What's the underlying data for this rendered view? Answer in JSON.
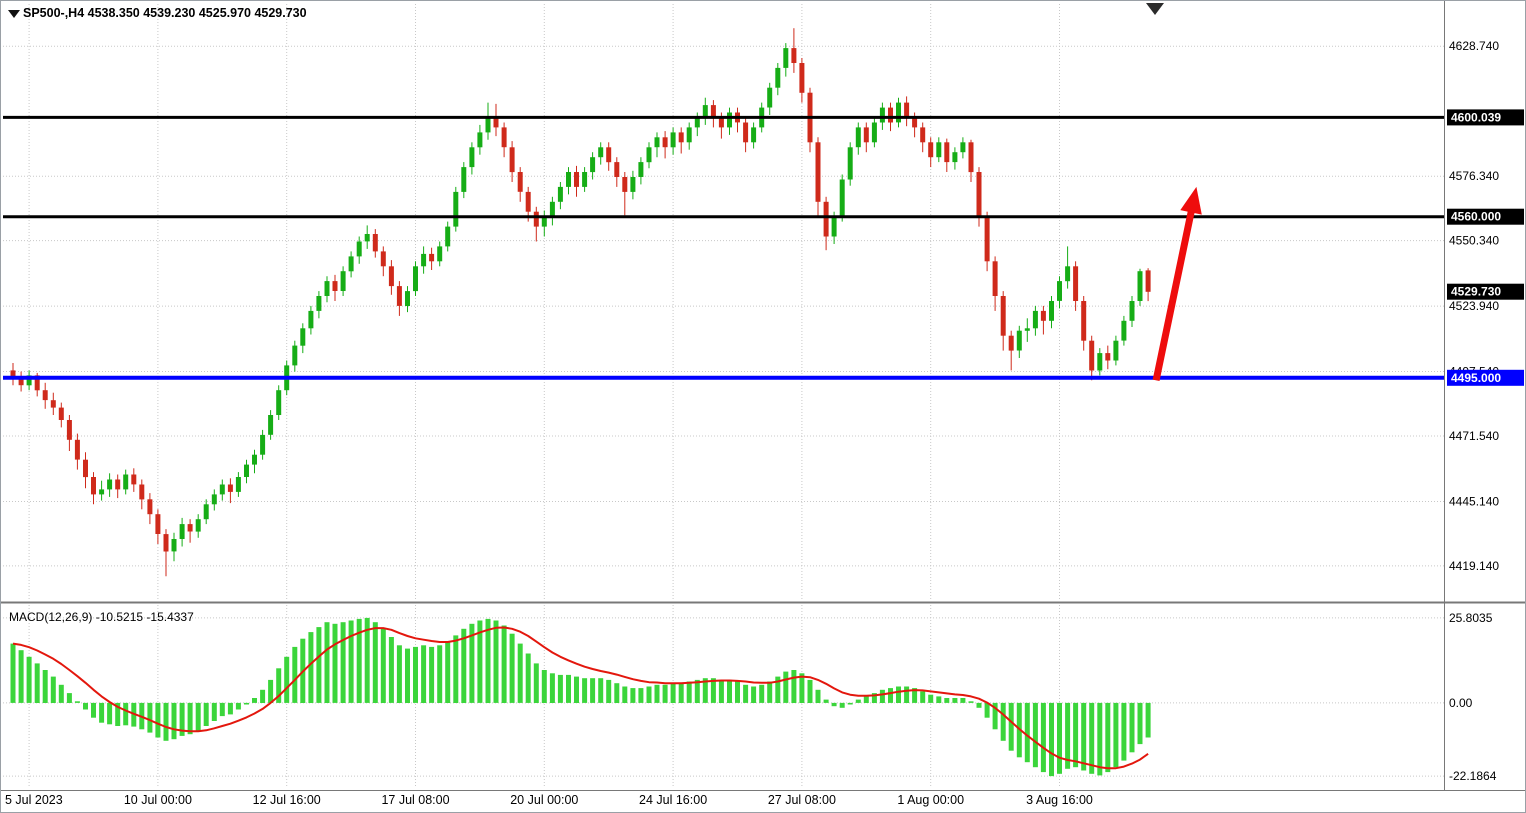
{
  "window": {
    "symbol_header": "SP500-,H4 4538.350 4539.230 4525.970 4529.730",
    "macd_header": "MACD(12,26,9) -10.5215 -15.4337"
  },
  "colors": {
    "bull": "#16ad16",
    "bear": "#cf2a1b",
    "macd_hist": "#3bd53b",
    "macd_signal": "#e3170d",
    "arrow": "#ee0d0d",
    "grid": "#c8c8c8",
    "hline_black": "#000000",
    "hline_blue": "#0000ff",
    "label_text": "#ffffff",
    "axis_text": "#000000",
    "divider": "#787878"
  },
  "chart_data": {
    "type": "candlestick",
    "title": "SP500-,H4",
    "symbol": "SP500-",
    "timeframe": "H4",
    "last_ohlc": {
      "open": 4538.35,
      "high": 4539.23,
      "low": 4525.97,
      "close": 4529.73
    },
    "price_axis": {
      "range": [
        4405.0,
        4636.5
      ],
      "ticks": [
        {
          "value": 4628.74,
          "label": "4628.740"
        },
        {
          "value": 4576.34,
          "label": "4576.340"
        },
        {
          "value": 4550.34,
          "label": "4550.340"
        },
        {
          "value": 4523.94,
          "label": "4523.940"
        },
        {
          "value": 4497.54,
          "label": "4497.540"
        },
        {
          "value": 4471.54,
          "label": "4471.540"
        },
        {
          "value": 4445.14,
          "label": "4445.140"
        },
        {
          "value": 4419.14,
          "label": "4419.140"
        }
      ]
    },
    "time_axis": [
      {
        "bar": 2,
        "label": "5 Jul 2023"
      },
      {
        "bar": 18,
        "label": "10 Jul 00:00"
      },
      {
        "bar": 34,
        "label": "12 Jul 16:00"
      },
      {
        "bar": 50,
        "label": "17 Jul 08:00"
      },
      {
        "bar": 66,
        "label": "20 Jul 00:00"
      },
      {
        "bar": 82,
        "label": "24 Jul 16:00"
      },
      {
        "bar": 98,
        "label": "27 Jul 08:00"
      },
      {
        "bar": 114,
        "label": "1 Aug 00:00"
      },
      {
        "bar": 130,
        "label": "3 Aug 16:00"
      }
    ],
    "horizontal_lines": [
      {
        "price": 4600.039,
        "label": "4600.039",
        "color": "#000000",
        "width": 3
      },
      {
        "price": 4560.0,
        "label": "4560.000",
        "color": "#000000",
        "width": 3
      },
      {
        "price": 4495.0,
        "label": "4495.000",
        "color": "#0000ff",
        "width": 4
      }
    ],
    "current_price": {
      "value": 4529.73,
      "label": "4529.730"
    },
    "candles": [
      [
        4498.0,
        4501.0,
        4492.0,
        4495.0
      ],
      [
        4495.0,
        4497.5,
        4489.5,
        4492.0
      ],
      [
        4492.0,
        4498.0,
        4490.0,
        4496.0
      ],
      [
        4496.0,
        4497.0,
        4487.5,
        4490.0
      ],
      [
        4490.0,
        4493.0,
        4482.5,
        4486.0
      ],
      [
        4486.0,
        4489.0,
        4480.0,
        4483.0
      ],
      [
        4483.0,
        4485.0,
        4475.0,
        4478.0
      ],
      [
        4478.0,
        4480.0,
        4465.5,
        4470.0
      ],
      [
        4470.0,
        4472.5,
        4458.0,
        4462.0
      ],
      [
        4462.0,
        4465.0,
        4450.5,
        4455.0
      ],
      [
        4455.0,
        4457.0,
        4444.0,
        4448.0
      ],
      [
        4448.0,
        4453.5,
        4445.5,
        4450.0
      ],
      [
        4450.0,
        4456.5,
        4447.0,
        4454.0
      ],
      [
        4454.0,
        4456.0,
        4446.5,
        4450.0
      ],
      [
        4450.0,
        4458.0,
        4448.0,
        4456.0
      ],
      [
        4456.0,
        4458.5,
        4449.0,
        4452.0
      ],
      [
        4452.0,
        4454.0,
        4442.0,
        4446.0
      ],
      [
        4446.0,
        4448.5,
        4436.0,
        4440.0
      ],
      [
        4440.0,
        4442.0,
        4428.0,
        4432.0
      ],
      [
        4432.0,
        4434.0,
        4415.0,
        4425.0
      ],
      [
        4425.0,
        4432.5,
        4421.0,
        4430.0
      ],
      [
        4430.0,
        4438.5,
        4427.0,
        4436.0
      ],
      [
        4436.0,
        4438.0,
        4428.5,
        4433.0
      ],
      [
        4433.0,
        4440.0,
        4430.5,
        4438.0
      ],
      [
        4438.0,
        4446.0,
        4436.0,
        4444.0
      ],
      [
        4444.0,
        4450.0,
        4441.5,
        4448.0
      ],
      [
        4448.0,
        4454.0,
        4445.5,
        4452.0
      ],
      [
        4452.0,
        4454.5,
        4444.5,
        4449.0
      ],
      [
        4449.0,
        4457.0,
        4447.0,
        4455.0
      ],
      [
        4455.0,
        4462.0,
        4452.5,
        4460.0
      ],
      [
        4460.0,
        4466.0,
        4456.5,
        4464.0
      ],
      [
        4464.0,
        4474.0,
        4462.0,
        4472.0
      ],
      [
        4472.0,
        4482.0,
        4470.0,
        4480.0
      ],
      [
        4480.0,
        4492.0,
        4478.0,
        4490.0
      ],
      [
        4490.0,
        4502.0,
        4488.0,
        4500.0
      ],
      [
        4500.0,
        4510.0,
        4497.5,
        4508.0
      ],
      [
        4508.0,
        4517.0,
        4505.0,
        4515.0
      ],
      [
        4515.0,
        4524.0,
        4512.5,
        4522.0
      ],
      [
        4522.0,
        4530.0,
        4519.0,
        4528.0
      ],
      [
        4528.0,
        4536.0,
        4525.5,
        4534.0
      ],
      [
        4534.0,
        4536.5,
        4526.0,
        4530.0
      ],
      [
        4530.0,
        4540.0,
        4528.0,
        4538.0
      ],
      [
        4538.0,
        4546.0,
        4535.5,
        4544.0
      ],
      [
        4544.0,
        4552.0,
        4541.0,
        4550.0
      ],
      [
        4550.0,
        4556.5,
        4547.0,
        4553.0
      ],
      [
        4553.0,
        4555.0,
        4543.5,
        4546.0
      ],
      [
        4546.0,
        4548.0,
        4536.0,
        4540.0
      ],
      [
        4540.0,
        4542.5,
        4528.5,
        4532.0
      ],
      [
        4532.0,
        4534.0,
        4520.0,
        4524.0
      ],
      [
        4524.0,
        4532.0,
        4521.5,
        4530.0
      ],
      [
        4530.0,
        4542.0,
        4528.0,
        4540.0
      ],
      [
        4540.0,
        4548.0,
        4537.0,
        4545.0
      ],
      [
        4545.0,
        4547.5,
        4538.5,
        4542.0
      ],
      [
        4542.0,
        4550.0,
        4540.0,
        4548.0
      ],
      [
        4548.0,
        4558.0,
        4546.0,
        4556.0
      ],
      [
        4556.0,
        4572.0,
        4554.0,
        4570.0
      ],
      [
        4570.0,
        4582.0,
        4567.5,
        4580.0
      ],
      [
        4580.0,
        4590.0,
        4577.0,
        4588.0
      ],
      [
        4588.0,
        4597.0,
        4585.0,
        4594.0
      ],
      [
        4594.0,
        4606.0,
        4591.0,
        4600.0
      ],
      [
        4600.0,
        4605.5,
        4592.5,
        4596.0
      ],
      [
        4596.0,
        4598.0,
        4584.0,
        4588.0
      ],
      [
        4588.0,
        4590.5,
        4574.0,
        4578.0
      ],
      [
        4578.0,
        4580.0,
        4566.0,
        4570.0
      ],
      [
        4570.0,
        4572.0,
        4558.0,
        4562.0
      ],
      [
        4562.0,
        4564.0,
        4550.0,
        4556.0
      ],
      [
        4556.0,
        4562.5,
        4552.0,
        4560.0
      ],
      [
        4560.0,
        4568.0,
        4556.5,
        4566.0
      ],
      [
        4566.0,
        4574.0,
        4563.0,
        4572.0
      ],
      [
        4572.0,
        4580.0,
        4569.0,
        4578.0
      ],
      [
        4578.0,
        4580.5,
        4568.0,
        4572.0
      ],
      [
        4572.0,
        4580.0,
        4570.0,
        4578.0
      ],
      [
        4578.0,
        4586.0,
        4575.0,
        4584.0
      ],
      [
        4584.0,
        4590.0,
        4581.0,
        4588.0
      ],
      [
        4588.0,
        4590.0,
        4578.5,
        4582.0
      ],
      [
        4582.0,
        4584.0,
        4572.0,
        4576.0
      ],
      [
        4576.0,
        4578.0,
        4560.5,
        4570.0
      ],
      [
        4570.0,
        4578.5,
        4567.0,
        4576.0
      ],
      [
        4576.0,
        4584.0,
        4573.0,
        4582.0
      ],
      [
        4582.0,
        4590.0,
        4579.5,
        4588.0
      ],
      [
        4588.0,
        4594.0,
        4584.0,
        4592.0
      ],
      [
        4592.0,
        4594.5,
        4583.5,
        4588.0
      ],
      [
        4588.0,
        4596.0,
        4585.0,
        4594.0
      ],
      [
        4594.0,
        4596.0,
        4585.5,
        4590.0
      ],
      [
        4590.0,
        4598.0,
        4587.0,
        4596.0
      ],
      [
        4596.0,
        4602.0,
        4592.5,
        4600.0
      ],
      [
        4600.0,
        4608.0,
        4597.0,
        4605.0
      ],
      [
        4605.0,
        4607.0,
        4596.0,
        4600.0
      ],
      [
        4600.0,
        4602.0,
        4591.5,
        4596.0
      ],
      [
        4596.0,
        4604.0,
        4593.0,
        4602.0
      ],
      [
        4602.0,
        4604.0,
        4594.0,
        4598.0
      ],
      [
        4598.0,
        4600.0,
        4586.0,
        4590.0
      ],
      [
        4590.0,
        4598.0,
        4587.5,
        4596.0
      ],
      [
        4596.0,
        4606.0,
        4594.0,
        4604.0
      ],
      [
        4604.0,
        4614.0,
        4601.0,
        4612.0
      ],
      [
        4612.0,
        4622.0,
        4609.0,
        4620.0
      ],
      [
        4620.0,
        4630.0,
        4616.5,
        4628.0
      ],
      [
        4628.0,
        4636.0,
        4618.0,
        4622.0
      ],
      [
        4622.0,
        4624.0,
        4606.0,
        4610.0
      ],
      [
        4610.0,
        4612.0,
        4586.0,
        4590.0
      ],
      [
        4590.0,
        4592.0,
        4560.0,
        4566.0
      ],
      [
        4566.0,
        4568.0,
        4546.5,
        4552.0
      ],
      [
        4552.0,
        4562.0,
        4549.0,
        4560.0
      ],
      [
        4560.0,
        4577.0,
        4558.0,
        4575.0
      ],
      [
        4575.0,
        4590.0,
        4572.5,
        4588.0
      ],
      [
        4588.0,
        4598.0,
        4585.0,
        4596.0
      ],
      [
        4596.0,
        4598.0,
        4586.0,
        4590.0
      ],
      [
        4590.0,
        4600.0,
        4588.0,
        4598.0
      ],
      [
        4598.0,
        4606.0,
        4595.0,
        4604.0
      ],
      [
        4604.0,
        4606.0,
        4594.5,
        4598.0
      ],
      [
        4598.0,
        4608.0,
        4596.0,
        4606.0
      ],
      [
        4606.0,
        4608.5,
        4596.5,
        4600.0
      ],
      [
        4600.0,
        4602.0,
        4592.0,
        4596.0
      ],
      [
        4596.0,
        4598.0,
        4586.0,
        4590.0
      ],
      [
        4590.0,
        4592.0,
        4580.0,
        4584.0
      ],
      [
        4584.0,
        4592.0,
        4582.0,
        4590.0
      ],
      [
        4590.0,
        4591.5,
        4578.0,
        4582.0
      ],
      [
        4582.0,
        4588.0,
        4579.0,
        4586.0
      ],
      [
        4586.0,
        4592.0,
        4583.5,
        4590.0
      ],
      [
        4590.0,
        4591.0,
        4574.0,
        4578.0
      ],
      [
        4578.0,
        4580.0,
        4556.0,
        4560.0
      ],
      [
        4560.0,
        4562.0,
        4538.0,
        4542.0
      ],
      [
        4542.0,
        4544.0,
        4522.0,
        4528.0
      ],
      [
        4528.0,
        4530.0,
        4506.0,
        4512.0
      ],
      [
        4512.0,
        4514.0,
        4498.0,
        4506.0
      ],
      [
        4506.0,
        4516.0,
        4503.0,
        4514.0
      ],
      [
        4514.0,
        4519.0,
        4509.5,
        4515.0
      ],
      [
        4515.0,
        4524.0,
        4512.0,
        4522.0
      ],
      [
        4522.0,
        4524.0,
        4512.5,
        4518.0
      ],
      [
        4518.0,
        4528.0,
        4515.0,
        4526.0
      ],
      [
        4526.0,
        4536.0,
        4523.0,
        4534.0
      ],
      [
        4534.0,
        4548.0,
        4531.0,
        4540.0
      ],
      [
        4540.0,
        4542.0,
        4522.0,
        4526.0
      ],
      [
        4526.0,
        4528.0,
        4506.0,
        4510.0
      ],
      [
        4510.0,
        4512.0,
        4494.0,
        4498.0
      ],
      [
        4498.0,
        4507.0,
        4496.0,
        4505.0
      ],
      [
        4505.0,
        4508.0,
        4498.5,
        4502.0
      ],
      [
        4502.0,
        4512.0,
        4500.0,
        4510.0
      ],
      [
        4510.0,
        4520.0,
        4508.0,
        4518.0
      ],
      [
        4518.0,
        4528.0,
        4515.5,
        4526.0
      ],
      [
        4526.0,
        4539.0,
        4524.0,
        4538.0
      ],
      [
        4538.35,
        4539.23,
        4525.97,
        4529.73
      ]
    ],
    "macd": {
      "params": "12,26,9",
      "current_values": [
        "-10.5215",
        "-15.4337"
      ],
      "range": [
        -25.5,
        28.5
      ],
      "axis_ticks": [
        {
          "value": 25.8035,
          "label": "25.8035"
        },
        {
          "value": 0,
          "label": "0.00"
        },
        {
          "value": -22.1864,
          "label": "-22.1864"
        }
      ],
      "histogram": [
        18,
        16,
        14,
        12,
        10,
        8,
        5.5,
        3,
        0.5,
        -2,
        -4.5,
        -6,
        -6.5,
        -7,
        -6.8,
        -7.2,
        -8,
        -9,
        -10.5,
        -11.5,
        -11,
        -10,
        -9.5,
        -8.5,
        -7,
        -5.5,
        -4,
        -3.5,
        -2,
        -0.5,
        1.5,
        4,
        7,
        10.5,
        14,
        17,
        19.5,
        21.5,
        23,
        24.5,
        24,
        24.5,
        25,
        25.5,
        25.8,
        24.5,
        22.5,
        20,
        17.5,
        16.5,
        17,
        17.5,
        17,
        17.5,
        18.5,
        20.5,
        22.5,
        24,
        25,
        25.5,
        25,
        23.5,
        21,
        18,
        15,
        12,
        10,
        9,
        8.5,
        8.5,
        8,
        7.5,
        7.5,
        7.5,
        7,
        6,
        5,
        4.5,
        4.5,
        5,
        5.5,
        5.5,
        6,
        6,
        6.5,
        7,
        7.5,
        7.5,
        7,
        7,
        6.5,
        5.5,
        5,
        5.5,
        6.5,
        8,
        9.5,
        10,
        9,
        7,
        4,
        1,
        -1,
        -1.5,
        -0.5,
        1,
        2,
        3,
        4,
        4.5,
        5,
        5,
        4.5,
        3.5,
        2.5,
        2,
        1.5,
        1.5,
        1.5,
        0.5,
        -1.5,
        -4.5,
        -8,
        -11.5,
        -14.5,
        -16.5,
        -18,
        -19.5,
        -21,
        -22.2,
        -21.5,
        -20,
        -19.5,
        -20.5,
        -21.5,
        -22,
        -21,
        -19.5,
        -17.5,
        -15,
        -12.5,
        -10.5
      ],
      "signal": [
        18,
        17.6,
        16.9,
        15.9,
        14.7,
        13.4,
        11.8,
        10,
        8.1,
        6.1,
        4,
        2,
        0.3,
        -1.2,
        -2.3,
        -3.3,
        -4.2,
        -5.2,
        -6.3,
        -7.3,
        -8,
        -8.4,
        -8.6,
        -8.6,
        -8.3,
        -7.7,
        -7,
        -6.3,
        -5.4,
        -4.4,
        -3.2,
        -1.8,
        0,
        2.1,
        4.5,
        7,
        9.5,
        11.9,
        14.1,
        16.2,
        17.8,
        19.1,
        20.3,
        21.3,
        22.2,
        22.7,
        22.7,
        22.2,
        21.2,
        20.3,
        19.6,
        19.2,
        18.8,
        18.5,
        18.5,
        18.9,
        19.6,
        20.5,
        21.4,
        22.2,
        22.8,
        22.9,
        22.5,
        21.6,
        20.3,
        18.6,
        16.9,
        15.3,
        14,
        12.9,
        11.9,
        11,
        10.3,
        9.7,
        9.2,
        8.6,
        7.9,
        7.2,
        6.7,
        6.3,
        6.2,
        6,
        6,
        6,
        6.1,
        6.3,
        6.5,
        6.7,
        6.8,
        6.8,
        6.7,
        6.5,
        6.2,
        6.1,
        6.1,
        6.5,
        7.1,
        7.7,
        8,
        7.8,
        7,
        5.8,
        4.4,
        3.2,
        2.5,
        2.2,
        2.2,
        2.3,
        2.6,
        3,
        3.4,
        3.7,
        3.9,
        3.8,
        3.5,
        3.2,
        2.9,
        2.6,
        2.4,
        2,
        1.3,
        0.1,
        -1.5,
        -3.5,
        -5.7,
        -7.9,
        -9.9,
        -11.8,
        -13.6,
        -15.3,
        -16.6,
        -17.3,
        -17.7,
        -18.3,
        -18.9,
        -19.5,
        -19.8,
        -19.8,
        -19.3,
        -18.4,
        -17.2,
        -15.43
      ]
    },
    "annotations": {
      "arrow": {
        "from_bar": 142,
        "from_price": 4494,
        "to_bar": 147,
        "to_price": 4572
      }
    }
  }
}
